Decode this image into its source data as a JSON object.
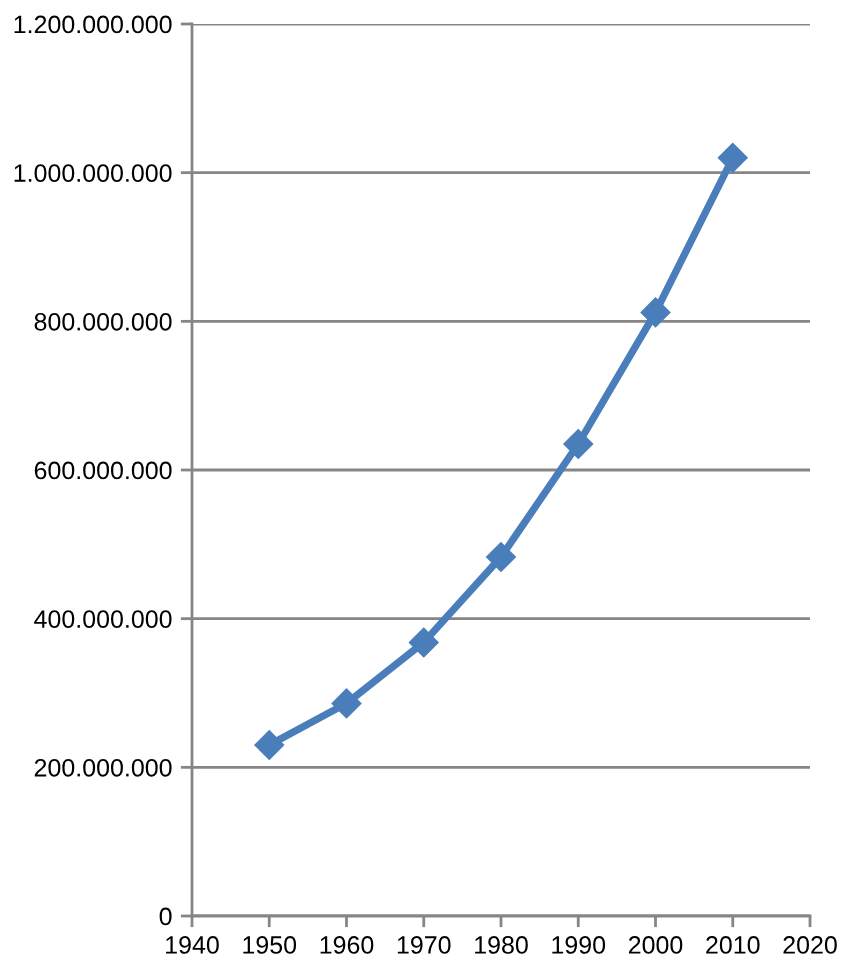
{
  "chart_data": {
    "type": "line",
    "x": [
      1950,
      1960,
      1970,
      1980,
      1990,
      2000,
      2010
    ],
    "series": [
      {
        "color": "#4a7ebb",
        "values": [
          230000000,
          286000000,
          368000000,
          483000000,
          635000000,
          812000000,
          1020000000
        ]
      }
    ],
    "xlim": [
      1940,
      2020
    ],
    "xticks": [
      1940,
      1950,
      1960,
      1970,
      1980,
      1990,
      2000,
      2010,
      2020
    ],
    "ylim": [
      0,
      1200000000
    ],
    "yticks": [
      0,
      {
        "value": 200000000,
        "label": "200.000.000"
      },
      {
        "value": 400000000,
        "label": "400.000.000"
      },
      {
        "value": 600000000,
        "label": "600.000.000"
      },
      {
        "value": 800000000,
        "label": "800.000.000"
      },
      {
        "value": 1000000000,
        "label": "1.000.000.000"
      },
      {
        "value": 1200000000,
        "label": "1.200.000.000"
      }
    ],
    "grid": "y",
    "marker": "diamond",
    "line_style": "solid"
  }
}
